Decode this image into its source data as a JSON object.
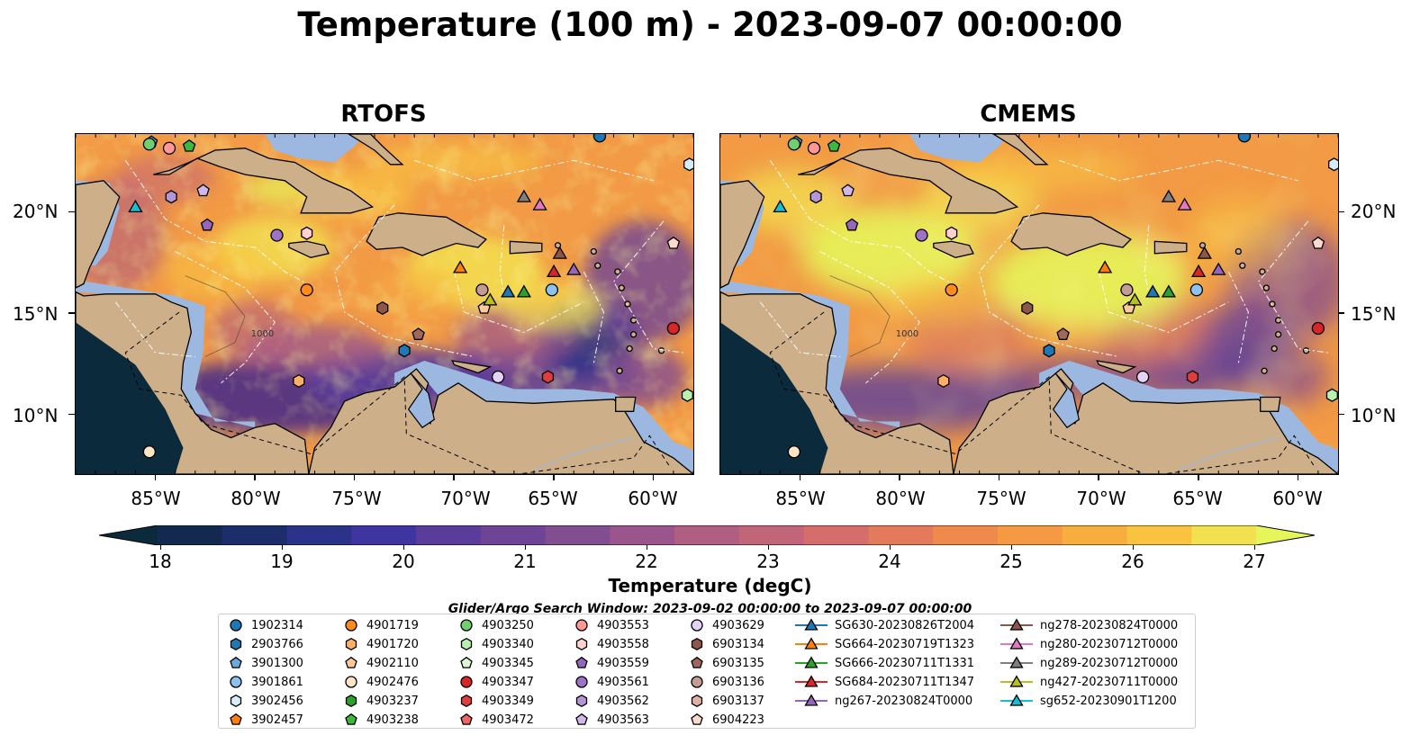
{
  "title": "Temperature (100 m) - 2023-09-07 00:00:00",
  "panels": [
    {
      "title": "RTOFS",
      "mode": "rtofs"
    },
    {
      "title": "CMEMS",
      "mode": "cmems"
    }
  ],
  "lat_ticks": [
    "20°N",
    "15°N",
    "10°N"
  ],
  "lon_ticks": [
    "85°W",
    "80°W",
    "75°W",
    "70°W",
    "65°W",
    "60°W"
  ],
  "isobath_label": "1000",
  "colorbar": {
    "label": "Temperature (degC)",
    "ticks": [
      "18",
      "19",
      "20",
      "21",
      "22",
      "23",
      "24",
      "25",
      "26",
      "27"
    ],
    "min": 18,
    "max": 27,
    "extend": "both",
    "colors": [
      "#0b2a3c",
      "#13294f",
      "#1d2d6a",
      "#2b3289",
      "#3f35a0",
      "#5a3d9b",
      "#6e4596",
      "#834d91",
      "#9a568c",
      "#b05e82",
      "#c36579",
      "#d46d6c",
      "#e47a5c",
      "#ef8a4b",
      "#f59a42",
      "#f8ad3f",
      "#f9c340",
      "#f3e04f",
      "#e6f559"
    ]
  },
  "search_window": "Glider/Argo Search Window: 2023-09-02 00:00:00 to 2023-09-07 00:00:00",
  "legend": [
    {
      "label": "1902314",
      "marker": "circle",
      "color": "#1f77b4"
    },
    {
      "label": "2903766",
      "marker": "hexagon",
      "color": "#1f77b4"
    },
    {
      "label": "3901300",
      "marker": "pentagon",
      "color": "#6fa8dc"
    },
    {
      "label": "3901861",
      "marker": "circle",
      "color": "#8fc3ef"
    },
    {
      "label": "3902456",
      "marker": "hexagon",
      "color": "#d6ecfa"
    },
    {
      "label": "3902457",
      "marker": "pentagon",
      "color": "#ff7f0e"
    },
    {
      "label": "4901719",
      "marker": "circle",
      "color": "#ff8c1a"
    },
    {
      "label": "4901720",
      "marker": "hexagon",
      "color": "#ffb066"
    },
    {
      "label": "4902110",
      "marker": "pentagon",
      "color": "#ffc99a"
    },
    {
      "label": "4902476",
      "marker": "circle",
      "color": "#ffe4c6"
    },
    {
      "label": "4903237",
      "marker": "hexagon",
      "color": "#2ca02c"
    },
    {
      "label": "4903238",
      "marker": "pentagon",
      "color": "#3cb83c"
    },
    {
      "label": "4903250",
      "marker": "circle",
      "color": "#6fd06f"
    },
    {
      "label": "4903340",
      "marker": "hexagon",
      "color": "#b9f0b0"
    },
    {
      "label": "4903345",
      "marker": "pentagon",
      "color": "#ddf8d4"
    },
    {
      "label": "4903347",
      "marker": "circle",
      "color": "#d62728"
    },
    {
      "label": "4903349",
      "marker": "hexagon",
      "color": "#e03d3e"
    },
    {
      "label": "4903472",
      "marker": "pentagon",
      "color": "#f06466"
    },
    {
      "label": "4903553",
      "marker": "circle",
      "color": "#ff9896"
    },
    {
      "label": "4903558",
      "marker": "hexagon",
      "color": "#ffd0cf"
    },
    {
      "label": "4903559",
      "marker": "pentagon",
      "color": "#9467bd"
    },
    {
      "label": "4903561",
      "marker": "circle",
      "color": "#9e72c6"
    },
    {
      "label": "4903562",
      "marker": "hexagon",
      "color": "#b495d6"
    },
    {
      "label": "4903563",
      "marker": "pentagon",
      "color": "#d0b8ea"
    },
    {
      "label": "4903629",
      "marker": "circle",
      "color": "#e5d3f6"
    },
    {
      "label": "6903134",
      "marker": "hexagon",
      "color": "#8c564b"
    },
    {
      "label": "6903135",
      "marker": "pentagon",
      "color": "#a0685c"
    },
    {
      "label": "6903136",
      "marker": "circle",
      "color": "#c49c94"
    },
    {
      "label": "6903137",
      "marker": "hexagon",
      "color": "#e0b0a6"
    },
    {
      "label": "6904223",
      "marker": "pentagon",
      "color": "#fcd9cf"
    },
    {
      "label": "SG630-20230826T2004",
      "marker": "triangle",
      "color": "#1f77b4"
    },
    {
      "label": "SG664-20230719T1323",
      "marker": "triangle",
      "color": "#ff7f0e"
    },
    {
      "label": "SG666-20230711T1331",
      "marker": "triangle",
      "color": "#2ca02c"
    },
    {
      "label": "SG684-20230711T1347",
      "marker": "triangle",
      "color": "#d62728"
    },
    {
      "label": "ng267-20230824T0000",
      "marker": "triangle",
      "color": "#9467bd"
    },
    {
      "label": "ng278-20230824T0000",
      "marker": "triangle",
      "color": "#8c564b"
    },
    {
      "label": "ng280-20230712T0000",
      "marker": "triangle",
      "color": "#e377c2"
    },
    {
      "label": "ng289-20230712T0000",
      "marker": "triangle",
      "color": "#7f7f7f"
    },
    {
      "label": "ng427-20230711T0000",
      "marker": "triangle",
      "color": "#bcbd22"
    },
    {
      "label": "sg652-20230901T1200",
      "marker": "triangle",
      "color": "#17becf"
    }
  ],
  "observations": [
    {
      "id": "3901300",
      "lon": -85.2,
      "lat": 23.4
    },
    {
      "id": "4903250",
      "lon": -85.3,
      "lat": 23.3
    },
    {
      "id": "4903553",
      "lon": -84.3,
      "lat": 23.1
    },
    {
      "id": "4903238",
      "lon": -83.3,
      "lat": 23.2
    },
    {
      "id": "1902314",
      "lon": -62.7,
      "lat": 23.7
    },
    {
      "id": "4903562",
      "lon": -84.2,
      "lat": 20.7
    },
    {
      "id": "4903563",
      "lon": -82.6,
      "lat": 21.0
    },
    {
      "id": "4903559",
      "lon": -82.4,
      "lat": 19.3
    },
    {
      "id": "4903561",
      "lon": -78.9,
      "lat": 18.8
    },
    {
      "id": "4903558",
      "lon": -77.4,
      "lat": 18.9
    },
    {
      "id": "4901719",
      "lon": -77.4,
      "lat": 16.1
    },
    {
      "id": "6903134",
      "lon": -73.6,
      "lat": 15.2
    },
    {
      "id": "6903135",
      "lon": -71.8,
      "lat": 13.9
    },
    {
      "id": "2903766",
      "lon": -72.5,
      "lat": 13.1
    },
    {
      "id": "4901720",
      "lon": -77.8,
      "lat": 11.6
    },
    {
      "id": "4902476",
      "lon": -85.3,
      "lat": 8.1
    },
    {
      "id": "6903136",
      "lon": -68.6,
      "lat": 16.1
    },
    {
      "id": "4902110",
      "lon": -68.5,
      "lat": 15.2
    },
    {
      "id": "3901861",
      "lon": -65.1,
      "lat": 16.1
    },
    {
      "id": "4903629",
      "lon": -67.8,
      "lat": 11.8
    },
    {
      "id": "4903349",
      "lon": -65.3,
      "lat": 11.8
    },
    {
      "id": "4903347",
      "lon": -59.0,
      "lat": 14.2
    },
    {
      "id": "6904223",
      "lon": -59.0,
      "lat": 18.4
    },
    {
      "id": "4903340",
      "lon": -58.3,
      "lat": 10.9
    },
    {
      "id": "3902456",
      "lon": -58.2,
      "lat": 22.3
    },
    {
      "id": "sg652-20230901T1200",
      "lon": -86.0,
      "lat": 20.2
    },
    {
      "id": "ng289-20230712T0000",
      "lon": -66.5,
      "lat": 20.7
    },
    {
      "id": "ng280-20230712T0000",
      "lon": -65.7,
      "lat": 20.3
    },
    {
      "id": "ng278-20230824T0000",
      "lon": -64.7,
      "lat": 17.9
    },
    {
      "id": "ng267-20230824T0000",
      "lon": -64.0,
      "lat": 17.1
    },
    {
      "id": "SG684-20230711T1347",
      "lon": -65.0,
      "lat": 17.0
    },
    {
      "id": "SG664-20230719T1323",
      "lon": -69.7,
      "lat": 17.2
    },
    {
      "id": "SG666-20230711T1331",
      "lon": -66.5,
      "lat": 16.0
    },
    {
      "id": "SG630-20230826T2004",
      "lon": -67.3,
      "lat": 16.0
    },
    {
      "id": "ng427-20230711T0000",
      "lon": -68.2,
      "lat": 15.6
    }
  ]
}
